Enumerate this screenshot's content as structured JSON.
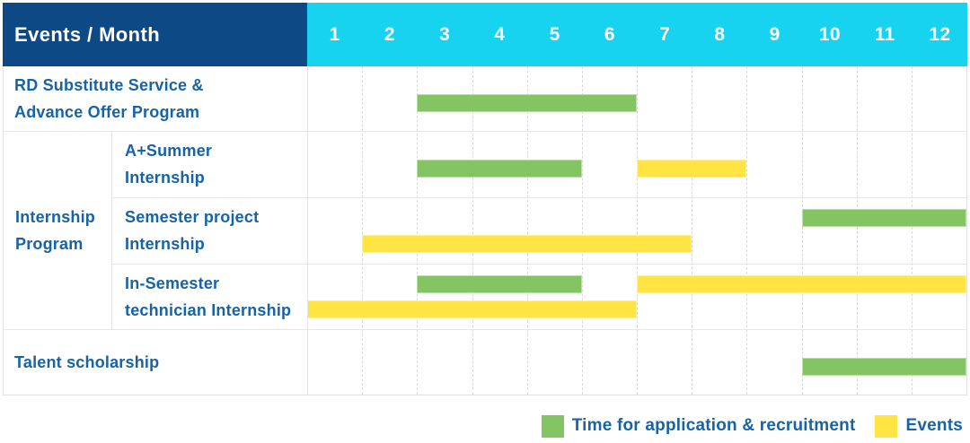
{
  "header": {
    "title": "Events / Month",
    "months": [
      "1",
      "2",
      "3",
      "4",
      "5",
      "6",
      "7",
      "8",
      "9",
      "10",
      "11",
      "12"
    ]
  },
  "chart_data": {
    "type": "gantt",
    "title": "Events / Month",
    "x_axis": {
      "label": "Month",
      "ticks": [
        "1",
        "2",
        "3",
        "4",
        "5",
        "6",
        "7",
        "8",
        "9",
        "10",
        "11",
        "12"
      ],
      "range": [
        1,
        12
      ]
    },
    "group_label": "Internship\nProgram",
    "rows": [
      {
        "label": "RD Substitute Service &\nAdvance Offer Program",
        "group": null,
        "bars": [
          {
            "color": "green",
            "start": 3,
            "end": 6,
            "lane": "mid"
          }
        ]
      },
      {
        "label": "A+Summer\nInternship",
        "group": "Internship Program",
        "bars": [
          {
            "color": "green",
            "start": 3,
            "end": 5,
            "lane": "mid"
          },
          {
            "color": "yellow",
            "start": 7,
            "end": 8,
            "lane": "mid"
          }
        ]
      },
      {
        "label": "Semester project\nInternship",
        "group": "Internship Program",
        "bars": [
          {
            "color": "green",
            "start": 10,
            "end": 12,
            "lane": "top"
          },
          {
            "color": "yellow",
            "start": 2,
            "end": 7,
            "lane": "bottom"
          }
        ]
      },
      {
        "label": "In-Semester\ntechnician Internship",
        "group": "Internship Program",
        "bars": [
          {
            "color": "green",
            "start": 3,
            "end": 5,
            "lane": "top"
          },
          {
            "color": "yellow",
            "start": 7,
            "end": 12,
            "lane": "top"
          },
          {
            "color": "yellow",
            "start": 1,
            "end": 6,
            "lane": "bottom"
          }
        ]
      },
      {
        "label": "Talent scholarship",
        "group": null,
        "bars": [
          {
            "color": "green",
            "start": 10,
            "end": 12,
            "lane": "mid"
          }
        ]
      }
    ],
    "legend": [
      {
        "color": "green",
        "label": "Time for application & recruitment"
      },
      {
        "color": "yellow",
        "label": "Events"
      }
    ],
    "colors": {
      "green": "#84c563",
      "yellow": "#ffe443",
      "header_bg": "#0d4a85",
      "month_header_bg": "#17d3f0",
      "text_blue": "#1763a6",
      "header_text": "#ffffff"
    }
  }
}
